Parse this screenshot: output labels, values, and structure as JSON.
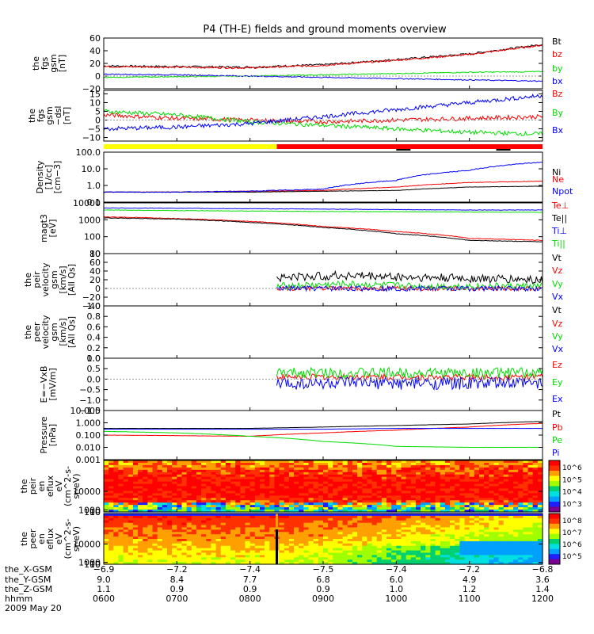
{
  "title": "P4 (TH-E) fields and ground moments overview",
  "chart_data": [
    {
      "type": "line",
      "name": "fgs-gsm",
      "ylabel": [
        "the",
        "fgs",
        "gsm",
        "[nT]"
      ],
      "ylim": [
        -20,
        60
      ],
      "yticks": [
        "60",
        "40",
        "20",
        "0",
        "−20"
      ],
      "ytick_values": [
        60,
        40,
        20,
        0,
        -20
      ],
      "series": [
        {
          "name": "Bt",
          "color": "#000000",
          "x": [
            0,
            60,
            120,
            180,
            240,
            300,
            360
          ],
          "y": [
            16,
            15,
            14,
            18,
            26,
            35,
            50
          ],
          "noise": 1.5
        },
        {
          "name": "bz",
          "color": "#ff0000",
          "x": [
            0,
            60,
            120,
            180,
            240,
            300,
            360
          ],
          "y": [
            15,
            14,
            13,
            17,
            25,
            34,
            49
          ],
          "noise": 1.5
        },
        {
          "name": "by",
          "color": "#00dd00",
          "x": [
            0,
            60,
            120,
            180,
            240,
            300,
            360
          ],
          "y": [
            -2,
            -1,
            0,
            2,
            4,
            6,
            7
          ],
          "noise": 0.8
        },
        {
          "name": "bx",
          "color": "#0000ff",
          "x": [
            0,
            60,
            120,
            180,
            240,
            300,
            360
          ],
          "y": [
            3,
            2,
            0,
            -2,
            -4,
            -6,
            -8
          ],
          "noise": 0.8
        }
      ]
    },
    {
      "type": "line",
      "name": "fgs-gsm-dsl",
      "ylabel": [
        "the",
        "fgs",
        "gsm",
        "−dsl",
        "[nT]"
      ],
      "ylim": [
        -12,
        17
      ],
      "yticks": [
        "15",
        "10",
        "5",
        "0",
        "−5",
        "−10"
      ],
      "ytick_values": [
        15,
        10,
        5,
        0,
        -5,
        -10
      ],
      "series": [
        {
          "name": "Bz",
          "color": "#ff0000",
          "x": [
            0,
            60,
            120,
            180,
            240,
            300,
            360
          ],
          "y": [
            3,
            1,
            0,
            -1,
            0,
            1,
            2
          ],
          "noise": 1.2
        },
        {
          "name": "By",
          "color": "#00dd00",
          "x": [
            0,
            60,
            120,
            180,
            240,
            300,
            360
          ],
          "y": [
            5,
            3,
            -1,
            -3,
            -5,
            -7,
            -8
          ],
          "noise": 1.2
        },
        {
          "name": "Bx",
          "color": "#0000ff",
          "x": [
            0,
            60,
            120,
            180,
            240,
            300,
            360
          ],
          "y": [
            -5,
            -4,
            -2,
            2,
            6,
            10,
            14
          ],
          "noise": 1.2
        }
      ]
    },
    {
      "type": "line",
      "name": "density",
      "scale": "log",
      "ylabel": [
        "Density",
        "[1/cc]",
        "[cm−3]"
      ],
      "ylim": [
        0.1,
        100
      ],
      "yticks": [
        "100.0",
        "10.0",
        "1.0",
        "0.1"
      ],
      "ytick_values": [
        100,
        10,
        1,
        0.1
      ],
      "series": [
        {
          "name": "Ne",
          "color": "#ff0000",
          "x": [
            0,
            60,
            120,
            180,
            240,
            300,
            360
          ],
          "y": [
            0.4,
            0.4,
            0.45,
            0.5,
            0.8,
            1.5,
            1.8
          ],
          "noise": 0.05
        },
        {
          "name": "Ni",
          "color": "#000000",
          "x": [
            0,
            60,
            120,
            180,
            240,
            300,
            360
          ],
          "y": [
            0.4,
            0.4,
            0.4,
            0.45,
            0.5,
            0.8,
            0.9
          ],
          "noise": 0.03
        },
        {
          "name": "Npot",
          "color": "#0000ff",
          "x": [
            0,
            60,
            120,
            180,
            240,
            300,
            360
          ],
          "y": [
            0.4,
            0.4,
            0.45,
            0.6,
            2,
            8,
            25
          ],
          "noise": 0.08
        }
      ]
    },
    {
      "type": "line",
      "name": "magt3",
      "scale": "log",
      "ylabel": [
        "magt3",
        "[eV]"
      ],
      "ylim": [
        10,
        10000
      ],
      "yticks": [
        "10000",
        "1000",
        "100",
        "10"
      ],
      "ytick_values": [
        10000,
        1000,
        100,
        10
      ],
      "series": [
        {
          "name": "Te⊥",
          "color": "#ff0000",
          "x": [
            0,
            60,
            120,
            180,
            240,
            300,
            360
          ],
          "y": [
            1500,
            1200,
            800,
            400,
            200,
            80,
            60
          ],
          "noise": 0.06
        },
        {
          "name": "Te||",
          "color": "#000000",
          "x": [
            0,
            60,
            120,
            180,
            240,
            300,
            360
          ],
          "y": [
            1300,
            1100,
            700,
            350,
            150,
            60,
            50
          ],
          "noise": 0.06
        },
        {
          "name": "Ti⊥",
          "color": "#0000ff",
          "x": [
            0,
            60,
            120,
            180,
            240,
            300,
            360
          ],
          "y": [
            5000,
            4800,
            4500,
            4300,
            4000,
            3800,
            3800
          ],
          "noise": 0.04
        },
        {
          "name": "Ti||",
          "color": "#00dd00",
          "x": [
            0,
            60,
            120,
            180,
            240,
            300,
            360
          ],
          "y": [
            3800,
            3500,
            3300,
            3100,
            3000,
            2900,
            2800
          ],
          "noise": 0.04
        }
      ]
    },
    {
      "type": "line",
      "name": "peir-velocity",
      "ylabel": [
        "the",
        "peir",
        "velocity",
        "gsm",
        "[km/s]",
        "[All Qs]"
      ],
      "ylim": [
        -40,
        80
      ],
      "yticks": [
        "80",
        "60",
        "40",
        "20",
        "0",
        "−20",
        "−40"
      ],
      "ytick_values": [
        80,
        60,
        40,
        20,
        0,
        -20,
        -40
      ],
      "data_start": 142,
      "series": [
        {
          "name": "Vt",
          "color": "#000000",
          "x": [
            142,
            200,
            260,
            360
          ],
          "y": [
            25,
            30,
            25,
            20
          ],
          "noise": 10
        },
        {
          "name": "Vz",
          "color": "#ff0000",
          "x": [
            142,
            200,
            260,
            360
          ],
          "y": [
            0,
            0,
            0,
            0
          ],
          "noise": 5
        },
        {
          "name": "Vy",
          "color": "#00dd00",
          "x": [
            142,
            200,
            260,
            360
          ],
          "y": [
            5,
            10,
            5,
            5
          ],
          "noise": 8
        },
        {
          "name": "Vx",
          "color": "#0000ff",
          "x": [
            142,
            200,
            260,
            360
          ],
          "y": [
            0,
            0,
            0,
            0
          ],
          "noise": 6
        }
      ]
    },
    {
      "type": "line",
      "name": "peer-velocity",
      "ylabel": [
        "the",
        "peer",
        "velocity",
        "gsm",
        "[km/s]",
        "[All Qs]"
      ],
      "ylim": [
        0,
        1
      ],
      "yticks": [
        "1.0",
        "0.8",
        "0.6",
        "0.4",
        "0.2",
        "0.0"
      ],
      "ytick_values": [
        1,
        0.8,
        0.6,
        0.4,
        0.2,
        0
      ],
      "series": [
        {
          "name": "Vt",
          "color": "#000000",
          "x": [],
          "y": []
        },
        {
          "name": "Vz",
          "color": "#ff0000",
          "x": [],
          "y": []
        },
        {
          "name": "Vy",
          "color": "#00dd00",
          "x": [],
          "y": []
        },
        {
          "name": "Vx",
          "color": "#0000ff",
          "x": [],
          "y": []
        }
      ]
    },
    {
      "type": "line",
      "name": "E-VxB",
      "ylabel": [
        "E=−VxB",
        "[mV/m]"
      ],
      "ylim": [
        -1.5,
        1.0
      ],
      "yticks": [
        "1.0",
        "0.5",
        "0.0",
        "−0.5",
        "−1.0",
        "−1.5"
      ],
      "ytick_values": [
        1,
        0.5,
        0,
        -0.5,
        -1,
        -1.5
      ],
      "data_start": 142,
      "series": [
        {
          "name": "Ez",
          "color": "#ff0000",
          "x": [
            142,
            360
          ],
          "y": [
            0.1,
            0.1
          ],
          "noise": 0.15
        },
        {
          "name": "Ey",
          "color": "#00dd00",
          "x": [
            142,
            360
          ],
          "y": [
            0.3,
            0.3
          ],
          "noise": 0.25
        },
        {
          "name": "Ex",
          "color": "#0000ff",
          "x": [
            142,
            360
          ],
          "y": [
            -0.2,
            -0.2
          ],
          "noise": 0.3
        }
      ]
    },
    {
      "type": "line",
      "name": "pressure",
      "scale": "log",
      "ylabel": [
        "Pressure",
        "[nPa]"
      ],
      "ylim": [
        0.001,
        10
      ],
      "yticks": [
        "10.000",
        "1.000",
        "0.100",
        "0.010",
        "0.001"
      ],
      "ytick_values": [
        10,
        1,
        0.1,
        0.01,
        0.001
      ],
      "series": [
        {
          "name": "Pt",
          "color": "#000000",
          "x": [
            0,
            60,
            120,
            180,
            240,
            300,
            360
          ],
          "y": [
            0.35,
            0.35,
            0.35,
            0.45,
            0.6,
            0.8,
            1.3
          ],
          "noise": 0.02
        },
        {
          "name": "Pb",
          "color": "#ff0000",
          "x": [
            0,
            60,
            120,
            180,
            240,
            300,
            360
          ],
          "y": [
            0.1,
            0.09,
            0.08,
            0.15,
            0.25,
            0.45,
            0.9
          ],
          "noise": 0.03
        },
        {
          "name": "Pe",
          "color": "#00dd00",
          "x": [
            0,
            60,
            120,
            180,
            240,
            300,
            360
          ],
          "y": [
            0.2,
            0.15,
            0.08,
            0.03,
            0.012,
            0.01,
            0.01
          ],
          "noise": 0.02
        },
        {
          "name": "Pi",
          "color": "#0000ff",
          "x": [
            0,
            60,
            120,
            180,
            240,
            300,
            360
          ],
          "y": [
            0.3,
            0.3,
            0.3,
            0.3,
            0.35,
            0.35,
            0.35
          ],
          "noise": 0.01
        }
      ]
    },
    {
      "type": "heatmap",
      "name": "peir-en-eflux",
      "ylabel": [
        "the",
        "peir",
        "en",
        "eflux",
        "eV",
        "(cm^2-s-",
        "sr-eV)"
      ],
      "yticks": [
        "10000",
        "1000",
        "100",
        "10"
      ],
      "ytick_values": [
        10000,
        1000,
        100,
        10
      ],
      "ylim": [
        5,
        25000
      ],
      "colorbar_ticks": [
        "10^6",
        "10^5",
        "10^4",
        "10^3"
      ]
    },
    {
      "type": "heatmap",
      "name": "peer-en-eflux",
      "ylabel": [
        "the",
        "peer",
        "en",
        "eflux",
        "eV",
        "(cm^2-s-",
        "sr-eV)"
      ],
      "yticks": [
        "10000",
        "1000",
        "100",
        "10"
      ],
      "ytick_values": [
        10000,
        1000,
        100,
        10
      ],
      "ylim": [
        5,
        25000
      ],
      "colorbar_ticks": [
        "10^8",
        "10^7",
        "10^6",
        "10^5"
      ]
    }
  ],
  "mode_bar": {
    "colors": [
      "#ffff00",
      "#ff0000"
    ],
    "switch_minutes": 142
  },
  "x_axis": {
    "minutes": [
      0,
      60,
      120,
      180,
      240,
      300,
      360
    ],
    "rows": [
      {
        "label": "the_X-GSM",
        "values": [
          "−6.9",
          "−7.2",
          "−7.4",
          "−7.5",
          "−7.4",
          "−7.2",
          "−6.8"
        ]
      },
      {
        "label": "the_Y-GSM",
        "values": [
          "9.0",
          "8.4",
          "7.7",
          "6.8",
          "6.0",
          "4.9",
          "3.6"
        ]
      },
      {
        "label": "the_Z-GSM",
        "values": [
          "1.1",
          "0.9",
          "0.9",
          "0.9",
          "1.0",
          "1.2",
          "1.4"
        ]
      },
      {
        "label": "hhmm",
        "values": [
          "0600",
          "0700",
          "0800",
          "0900",
          "1000",
          "1100",
          "1200"
        ]
      }
    ],
    "date": "2009 May 20"
  }
}
